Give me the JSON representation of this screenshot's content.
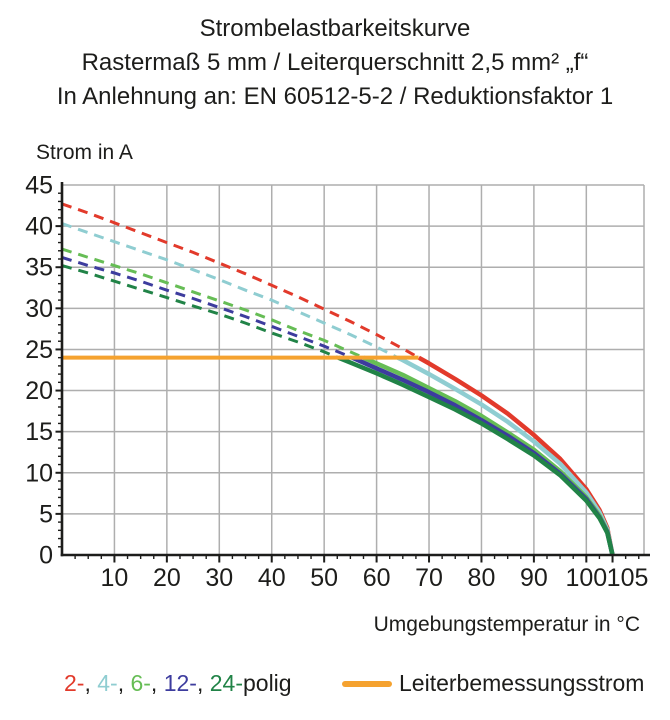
{
  "title": {
    "line1": "Strombelastbarkeitskurve",
    "line2": "Rastermaß 5 mm / Leiterquerschnitt 2,5 mm² „f“",
    "line3": "In Anlehnung an: EN 60512-5-2 / Reduktionsfaktor 1"
  },
  "legend": {
    "series_labels": [
      {
        "text": "2-",
        "color": "#E23A2B"
      },
      {
        "text": "4-",
        "color": "#8FCDD1"
      },
      {
        "text": "6-",
        "color": "#66BD55"
      },
      {
        "text": "12-",
        "color": "#3D3C9E"
      },
      {
        "text": "24-",
        "color": "#218347"
      }
    ],
    "separator": ", ",
    "suffix": "polig",
    "rated": {
      "label": "Leiterbemessungsstrom",
      "color": "#F5A22F"
    }
  },
  "chart_data": {
    "type": "line",
    "title": "Strombelastbarkeitskurve",
    "xlabel": "Umgebungstemperatur in °C",
    "ylabel": "Strom in A",
    "xlim": [
      0,
      111
    ],
    "ylim": [
      0,
      45
    ],
    "x_gridlines": [
      10,
      20,
      30,
      40,
      50,
      60,
      70,
      80,
      90,
      100
    ],
    "y_gridlines": [
      5,
      10,
      15,
      20,
      25,
      30,
      35,
      40,
      45
    ],
    "x_ticks": [
      {
        "v": 10,
        "label": "10"
      },
      {
        "v": 20,
        "label": "20"
      },
      {
        "v": 30,
        "label": "30"
      },
      {
        "v": 40,
        "label": "40"
      },
      {
        "v": 50,
        "label": "50"
      },
      {
        "v": 60,
        "label": "60"
      },
      {
        "v": 70,
        "label": "70"
      },
      {
        "v": 80,
        "label": "80"
      },
      {
        "v": 90,
        "label": "90"
      },
      {
        "v": 100,
        "label": "100"
      },
      {
        "v": 105,
        "label": "105",
        "dx": 15
      }
    ],
    "y_ticks": [
      {
        "v": 0,
        "label": "0"
      },
      {
        "v": 5,
        "label": "5"
      },
      {
        "v": 10,
        "label": "10"
      },
      {
        "v": 15,
        "label": "15"
      },
      {
        "v": 20,
        "label": "20"
      },
      {
        "v": 25,
        "label": "25"
      },
      {
        "v": 30,
        "label": "30"
      },
      {
        "v": 35,
        "label": "35"
      },
      {
        "v": 40,
        "label": "40"
      },
      {
        "v": 45,
        "label": "45"
      }
    ],
    "x_minor_step": 2.5,
    "y_minor_step": 1,
    "grid_color": "#AEAEAE",
    "axis_color": "#1D1D1B",
    "limit_temperature": 105,
    "rated_current": {
      "label": "Leiterbemessungsstrom",
      "value": 24,
      "x_start": 0,
      "x_end": 68,
      "color": "#F5A22F"
    },
    "x": [
      0,
      5,
      10,
      15,
      20,
      25,
      30,
      35,
      40,
      45,
      50,
      55,
      60,
      65,
      70,
      75,
      80,
      85,
      90,
      95,
      100,
      102.5,
      104,
      105
    ],
    "series": [
      {
        "name": "2-polig",
        "color": "#E23A2B",
        "current_at_0C": 42.7,
        "knee_temp": 68,
        "values": [
          42.7,
          41.6,
          40.4,
          39.2,
          38.0,
          36.8,
          35.5,
          34.2,
          32.8,
          31.4,
          29.9,
          28.4,
          26.8,
          25.1,
          23.3,
          21.4,
          19.4,
          17.2,
          14.6,
          11.7,
          8.0,
          5.5,
          3.3,
          0
        ]
      },
      {
        "name": "4-polig",
        "color": "#8FCDD1",
        "current_at_0C": 40.3,
        "knee_temp": 64,
        "values": [
          40.3,
          39.2,
          38.1,
          37.0,
          35.9,
          34.7,
          33.5,
          32.2,
          31.0,
          29.6,
          28.2,
          26.8,
          25.3,
          23.7,
          22.0,
          20.2,
          18.3,
          16.2,
          13.8,
          11.1,
          7.6,
          5.2,
          3.1,
          0
        ]
      },
      {
        "name": "6-polig",
        "color": "#66BD55",
        "current_at_0C": 37.2,
        "knee_temp": 58,
        "values": [
          37.2,
          36.2,
          35.2,
          34.2,
          33.1,
          32.0,
          30.9,
          29.8,
          28.6,
          27.3,
          26.1,
          24.7,
          23.3,
          21.9,
          20.3,
          18.7,
          16.9,
          14.9,
          12.8,
          10.2,
          7.0,
          4.8,
          2.9,
          0
        ]
      },
      {
        "name": "12-polig",
        "color": "#3D3C9E",
        "current_at_0C": 36.2,
        "knee_temp": 55,
        "values": [
          36.2,
          35.2,
          34.3,
          33.3,
          32.2,
          31.2,
          30.1,
          29.0,
          27.8,
          26.6,
          25.4,
          24.1,
          22.7,
          21.3,
          19.8,
          18.2,
          16.4,
          14.5,
          12.4,
          9.9,
          6.8,
          4.6,
          2.8,
          0
        ]
      },
      {
        "name": "24-polig",
        "color": "#218347",
        "current_at_0C": 35.2,
        "knee_temp": 53,
        "values": [
          35.2,
          34.3,
          33.3,
          32.3,
          31.3,
          30.3,
          29.3,
          28.2,
          27.0,
          25.9,
          24.7,
          23.4,
          22.1,
          20.7,
          19.2,
          17.7,
          16.0,
          14.1,
          12.1,
          9.7,
          6.6,
          4.5,
          2.7,
          0
        ]
      }
    ]
  }
}
